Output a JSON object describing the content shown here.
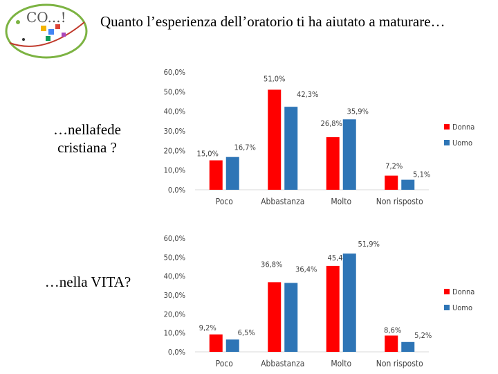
{
  "slide": {
    "title": "Quanto l’esperienza dell’oratorio ti ha aiutato a maturare…",
    "logo_text": "CO...!"
  },
  "colors": {
    "donna": "#ff0000",
    "uomo": "#2e75b6",
    "axis": "#d9d9d9",
    "text": "#404040"
  },
  "chart_data": [
    {
      "type": "bar",
      "label": "…nellafede cristiana ?",
      "categories": [
        "Poco",
        "Abbastanza",
        "Molto",
        "Non risposto"
      ],
      "series": [
        {
          "name": "Donna",
          "values": [
            15.0,
            51.0,
            26.8,
            7.2
          ],
          "value_labels": [
            "15,0%",
            "51,0%",
            "26,8%",
            "7,2%"
          ]
        },
        {
          "name": "Uomo",
          "values": [
            16.7,
            42.3,
            35.9,
            5.1
          ],
          "value_labels": [
            "16,7%",
            "42,3%",
            "35,9%",
            "5,1%"
          ]
        }
      ],
      "ylim": [
        0,
        60
      ],
      "ytick_labels": [
        "0,0%",
        "10,0%",
        "20,0%",
        "30,0%",
        "40,0%",
        "50,0%",
        "60,0%"
      ],
      "legend": "right"
    },
    {
      "type": "bar",
      "label": "…nella VITA?",
      "categories": [
        "Poco",
        "Abbastanza",
        "Molto",
        "Non risposto"
      ],
      "series": [
        {
          "name": "Donna",
          "values": [
            9.2,
            36.8,
            45.4,
            8.6
          ],
          "value_labels": [
            "9,2%",
            "36,8%",
            "45,4%",
            "8,6%"
          ]
        },
        {
          "name": "Uomo",
          "values": [
            6.5,
            36.4,
            51.9,
            5.2
          ],
          "value_labels": [
            "6,5%",
            "36,4%",
            "51,9%",
            "5,2%"
          ]
        }
      ],
      "ylim": [
        0,
        60
      ],
      "ytick_labels": [
        "0,0%",
        "10,0%",
        "20,0%",
        "30,0%",
        "40,0%",
        "50,0%",
        "60,0%"
      ],
      "legend": "right"
    }
  ]
}
